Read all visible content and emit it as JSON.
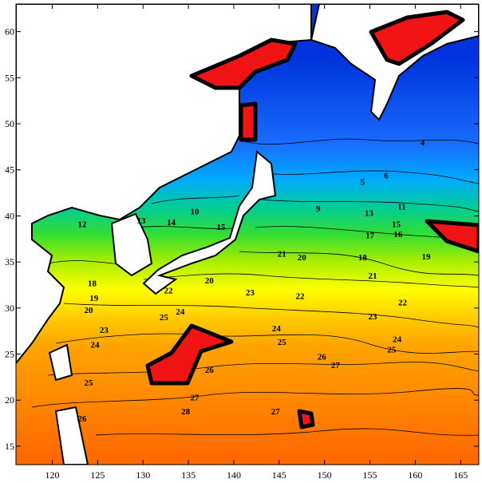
{
  "chart_data": {
    "type": "contour",
    "xlim": [
      116,
      167
    ],
    "ylim": [
      13,
      63
    ],
    "xticks": [
      120,
      125,
      130,
      135,
      140,
      145,
      150,
      155,
      160,
      165
    ],
    "yticks": [
      15,
      20,
      25,
      30,
      35,
      40,
      45,
      50,
      55,
      60
    ],
    "contour_labels": {
      "x": [
        135.7,
        123.3,
        129.8,
        133.1,
        138.6,
        149.3,
        158.5,
        154.9,
        157.9,
        155.0,
        158.1,
        161.2,
        145.3,
        147.5,
        154.2,
        155.3,
        137.3,
        132.8,
        141.8,
        147.3,
        158.6,
        155.3,
        134.1,
        132.3,
        144.7,
        145.3,
        158.0,
        157.4,
        149.7,
        151.2,
        137.3,
        124.0,
        135.7,
        134.7,
        144.6,
        123.3,
        124.4,
        124.6,
        124.0,
        125.7,
        124.7,
        160.8,
        154.2,
        156.8
      ],
      "y": [
        40.4,
        39.0,
        39.4,
        39.2,
        38.7,
        40.7,
        40.9,
        40.2,
        39.0,
        37.8,
        37.9,
        35.5,
        35.8,
        35.4,
        35.4,
        33.4,
        32.9,
        31.8,
        31.6,
        31.2,
        30.5,
        29.0,
        29.5,
        28.9,
        27.7,
        26.2,
        26.5,
        25.4,
        24.6,
        23.7,
        23.2,
        21.8,
        20.2,
        18.7,
        18.7,
        17.9,
        32.6,
        31.0,
        29.7,
        27.5,
        25.9,
        47.9,
        43.6,
        44.3
      ],
      "values": [
        10,
        12,
        13,
        14,
        15,
        9,
        11,
        13,
        15,
        17,
        16,
        19,
        21,
        20,
        18,
        21,
        20,
        22,
        23,
        22,
        22,
        23,
        24,
        25,
        24,
        25,
        24,
        25,
        26,
        27,
        26,
        25,
        27,
        28,
        27,
        26,
        18,
        19,
        20,
        23,
        24,
        4,
        5,
        6
      ]
    }
  }
}
